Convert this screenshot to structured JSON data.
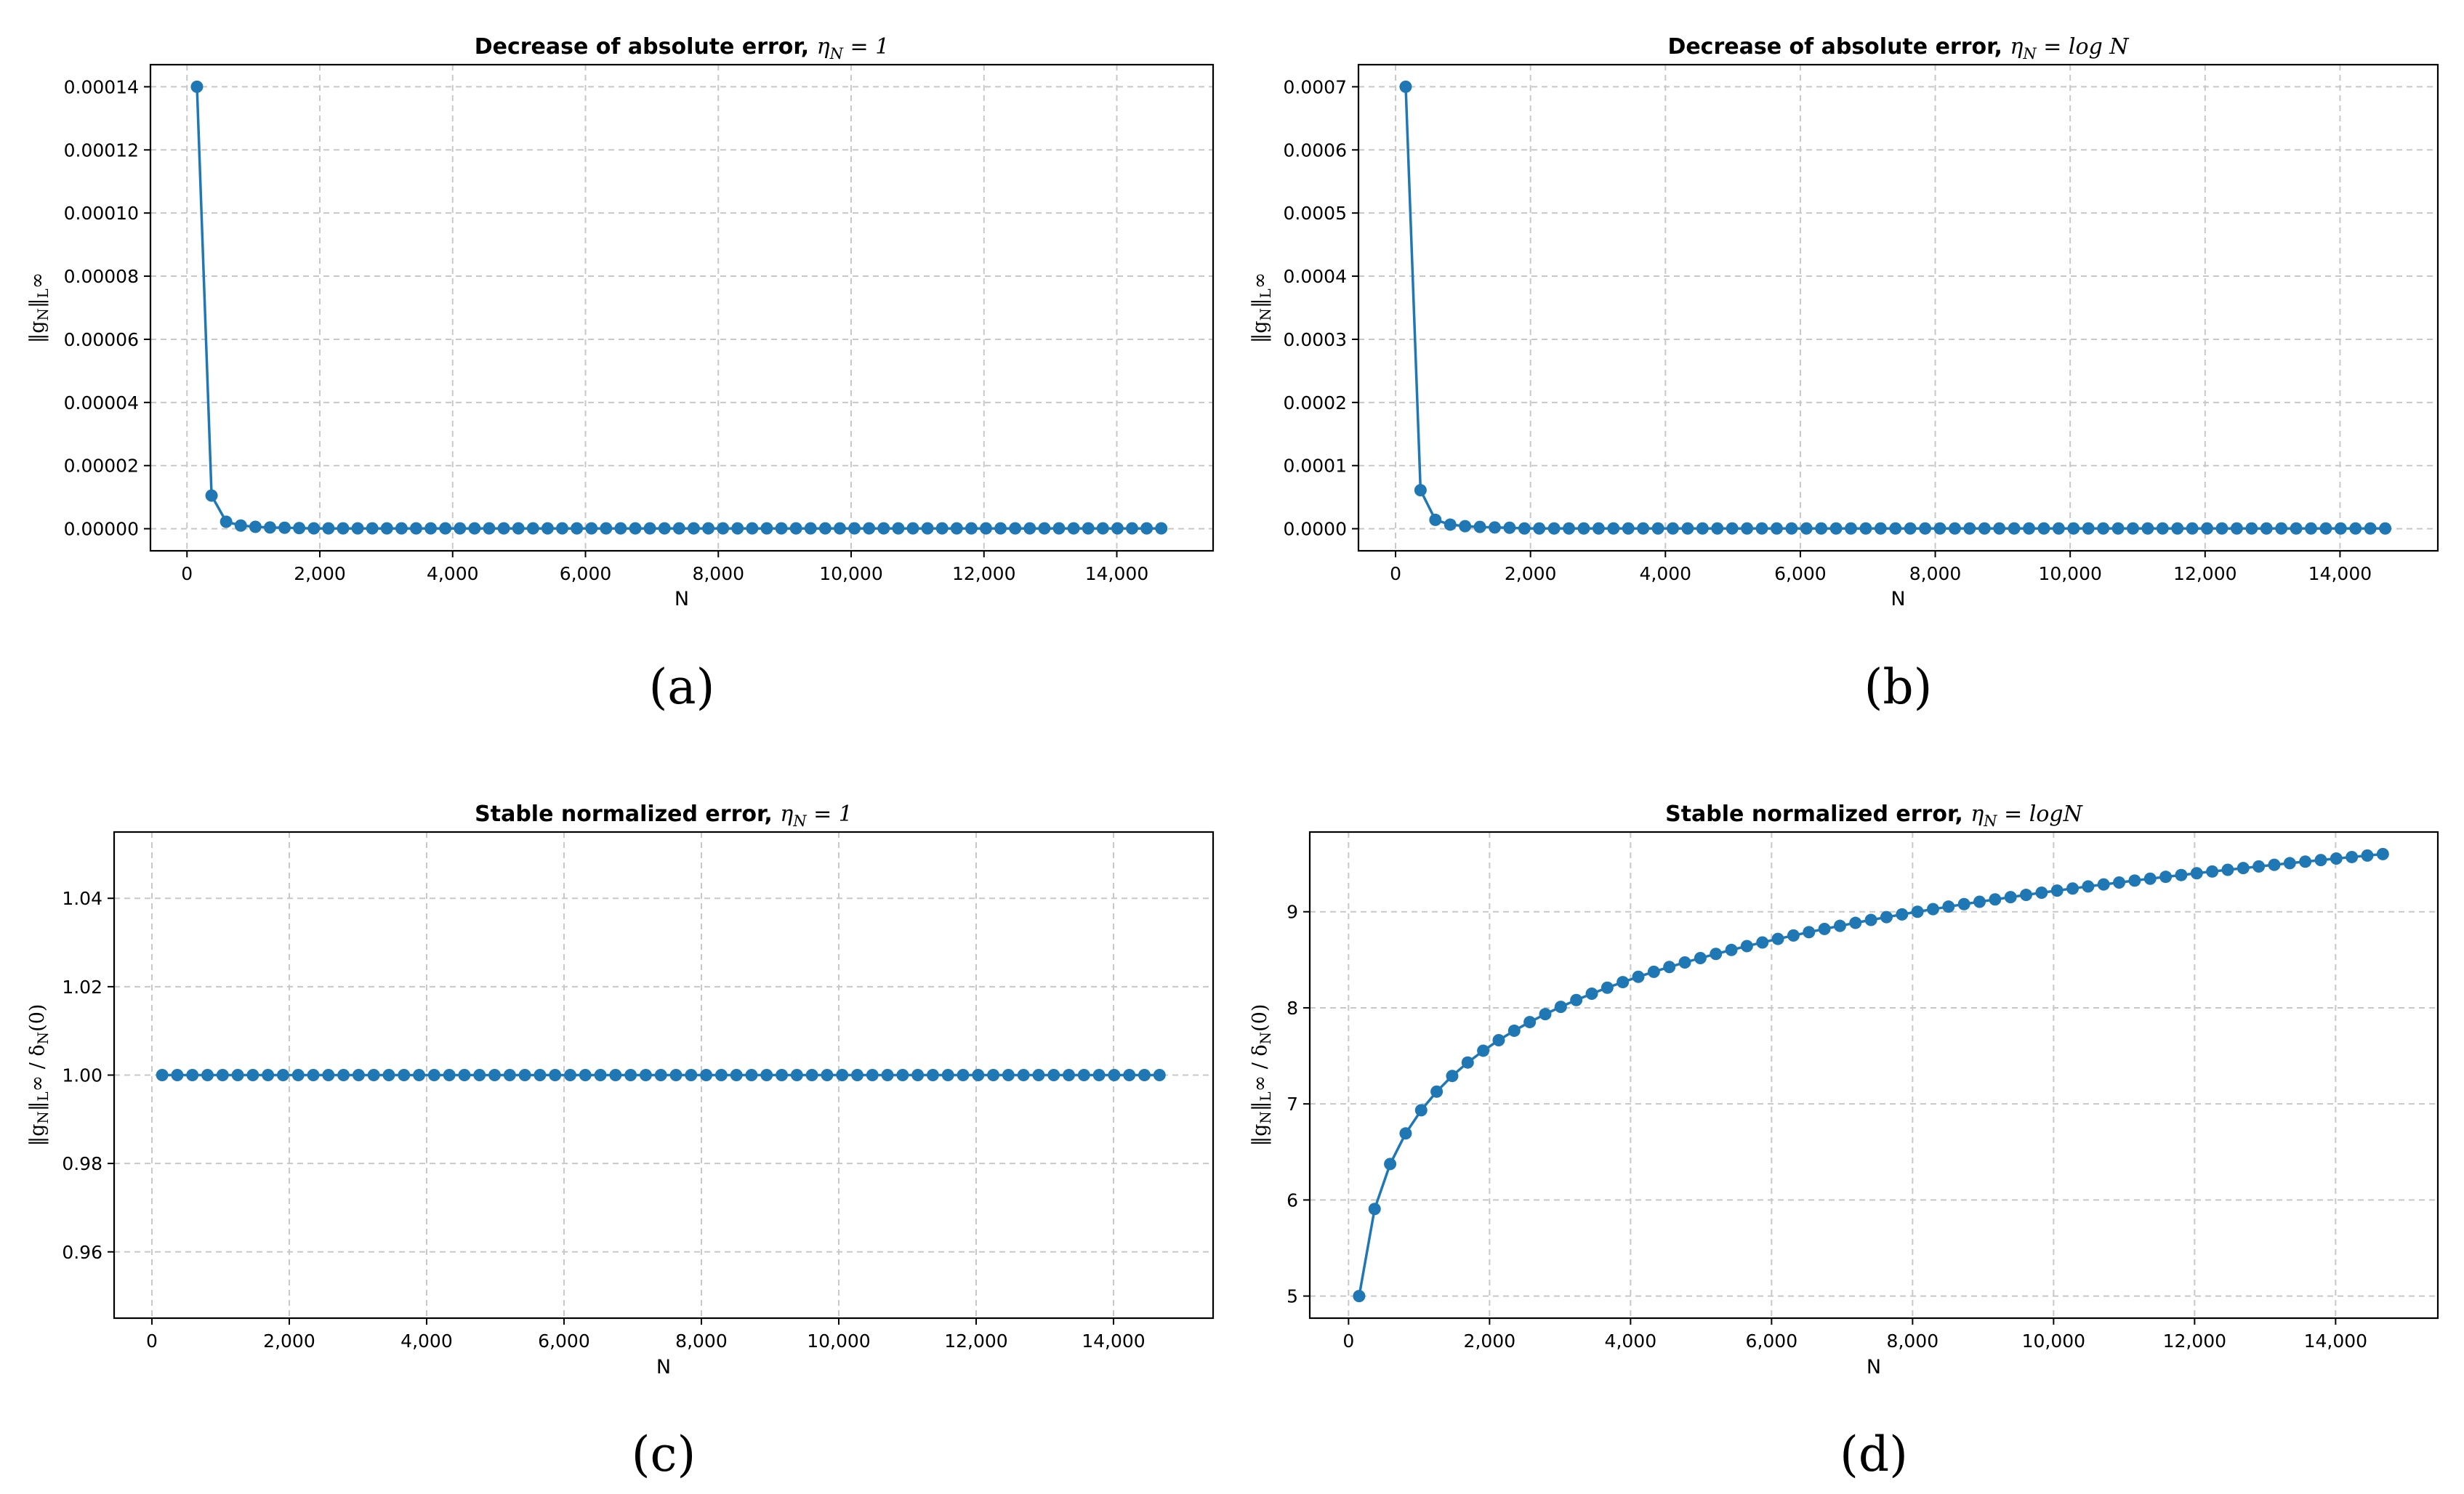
{
  "colors": {
    "series": "#1f77b4",
    "grid": "#c8c8c8",
    "axes": "#000000"
  },
  "chart_data": [
    {
      "panel": "a",
      "type": "line",
      "caption": "(a)",
      "title": "Decrease of absolute error, ",
      "title_math": "η_N = 1",
      "xlabel": "N",
      "ylabel": "‖g_N‖_L∞",
      "xlim": [
        -550,
        15450
      ],
      "ylim": [
        -7e-06,
        0.000147
      ],
      "xticks": [
        0,
        2000,
        4000,
        6000,
        8000,
        10000,
        12000,
        14000
      ],
      "xtick_labels": [
        "0",
        "2,000",
        "4,000",
        "6,000",
        "8,000",
        "10,000",
        "12,000",
        "14,000"
      ],
      "yticks": [
        0,
        2e-05,
        4e-05,
        6e-05,
        8e-05,
        0.0001,
        0.00012,
        0.00014
      ],
      "ytick_labels": [
        "0.00000",
        "0.00002",
        "0.00004",
        "0.00006",
        "0.00008",
        "0.00010",
        "0.00012",
        "0.00014"
      ],
      "grid": true,
      "x_start": 150,
      "x_step": 220,
      "count": 67,
      "y_head": [
        0.00014,
        1.05e-05,
        2.2e-06,
        1e-06,
        6e-07,
        4e-07,
        3e-07,
        2e-07
      ],
      "y_tail": 1e-07
    },
    {
      "panel": "b",
      "type": "line",
      "caption": "(b)",
      "title": "Decrease of absolute error, ",
      "title_math": "η_N = log N",
      "xlabel": "N",
      "ylabel": "‖g_N‖_L∞",
      "xlim": [
        -550,
        15450
      ],
      "ylim": [
        -3.5e-05,
        0.000735
      ],
      "xticks": [
        0,
        2000,
        4000,
        6000,
        8000,
        10000,
        12000,
        14000
      ],
      "xtick_labels": [
        "0",
        "2,000",
        "4,000",
        "6,000",
        "8,000",
        "10,000",
        "12,000",
        "14,000"
      ],
      "yticks": [
        0,
        0.0001,
        0.0002,
        0.0003,
        0.0004,
        0.0005,
        0.0006,
        0.0007
      ],
      "ytick_labels": [
        "0.0000",
        "0.0001",
        "0.0002",
        "0.0003",
        "0.0004",
        "0.0005",
        "0.0006",
        "0.0007"
      ],
      "grid": true,
      "x_start": 150,
      "x_step": 220,
      "count": 67,
      "y_head": [
        0.0007,
        6.1e-05,
        1.4e-05,
        6.5e-06,
        4e-06,
        2.8e-06,
        2e-06,
        1.5e-06
      ],
      "y_tail": 4e-07
    },
    {
      "panel": "c",
      "type": "line",
      "caption": "(c)",
      "title": "Stable normalized error, ",
      "title_math": "η_N = 1",
      "xlabel": "N",
      "ylabel": "‖g_N‖_L∞ / δ_N(0)",
      "xlim": [
        -550,
        15450
      ],
      "ylim": [
        0.945,
        1.055
      ],
      "xticks": [
        0,
        2000,
        4000,
        6000,
        8000,
        10000,
        12000,
        14000
      ],
      "xtick_labels": [
        "0",
        "2,000",
        "4,000",
        "6,000",
        "8,000",
        "10,000",
        "12,000",
        "14,000"
      ],
      "yticks": [
        0.96,
        0.98,
        1.0,
        1.02,
        1.04
      ],
      "ytick_labels": [
        "0.96",
        "0.98",
        "1.00",
        "1.02",
        "1.04"
      ],
      "grid": true,
      "x_start": 150,
      "x_step": 220,
      "count": 67,
      "constant_y": 1.0
    },
    {
      "panel": "d",
      "type": "line",
      "caption": "(d)",
      "title": "Stable normalized error, ",
      "title_math": "η_N = logN",
      "xlabel": "N",
      "ylabel": "‖g_N‖_L∞ / δ_N(0)",
      "xlim": [
        -550,
        15450
      ],
      "ylim": [
        4.77,
        9.83
      ],
      "xticks": [
        0,
        2000,
        4000,
        6000,
        8000,
        10000,
        12000,
        14000
      ],
      "xtick_labels": [
        "0",
        "2,000",
        "4,000",
        "6,000",
        "8,000",
        "10,000",
        "12,000",
        "14,000"
      ],
      "yticks": [
        5,
        6,
        7,
        8,
        9
      ],
      "ytick_labels": [
        "5",
        "6",
        "7",
        "8",
        "9"
      ],
      "grid": true,
      "x_start": 150,
      "x_step": 220,
      "count": 67,
      "y_formula": "ln(N)",
      "y_first": 5.0,
      "y_last": 9.6
    }
  ]
}
